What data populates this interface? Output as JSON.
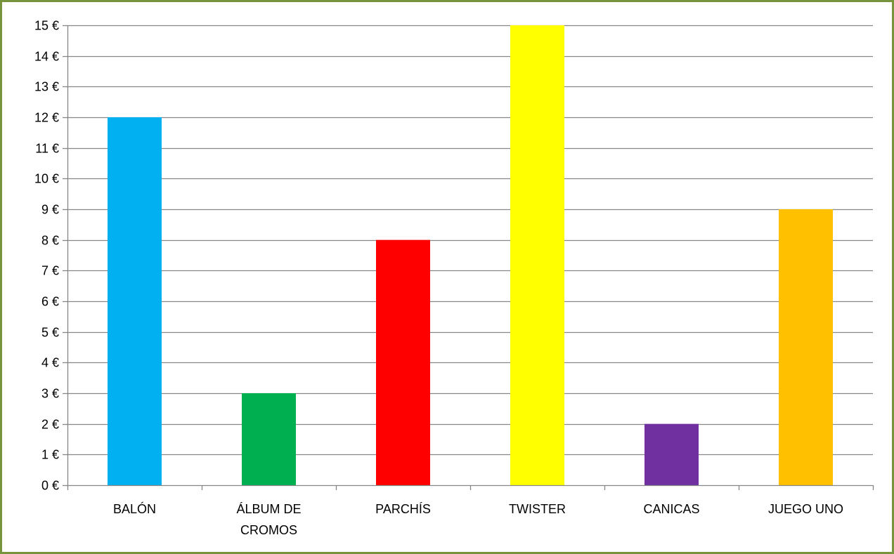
{
  "chart_data": {
    "type": "bar",
    "title": "",
    "xlabel": "",
    "ylabel": "",
    "categories": [
      [
        "BALÓN"
      ],
      [
        "ÁLBUM DE",
        "CROMOS"
      ],
      [
        "PARCHÍS"
      ],
      [
        "TWISTER"
      ],
      [
        "CANICAS"
      ],
      [
        "JUEGO UNO"
      ]
    ],
    "values": [
      12,
      3,
      8,
      15,
      2,
      9
    ],
    "colors": [
      "#00b0f0",
      "#00b050",
      "#ff0000",
      "#ffff00",
      "#7030a0",
      "#ffc000"
    ],
    "ylim": [
      0,
      15
    ],
    "ytick_step": 1,
    "ytick_suffix": " €",
    "grid": true,
    "legend": "none"
  },
  "style": {
    "border_color": "#77933c",
    "grid_color": "#868686",
    "axis_color": "#868686"
  }
}
